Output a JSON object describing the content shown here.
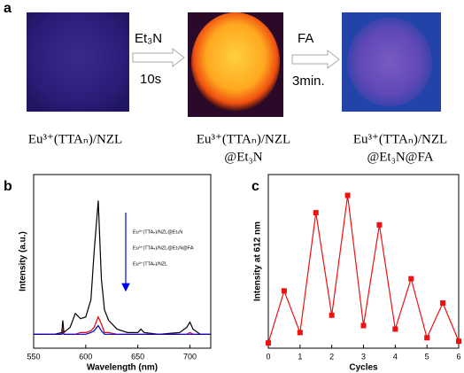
{
  "panel_a": {
    "label": "a",
    "arrows": [
      {
        "top": "Et₃N",
        "bottom": "10s"
      },
      {
        "top": "FA",
        "bottom": "3min."
      }
    ],
    "captions": [
      [
        "Eu³⁺(TTAₙ)/NZL"
      ],
      [
        "Eu³⁺(TTAₙ)/NZL",
        "@Et₃N"
      ],
      [
        "Eu³⁺(TTAₙ)/NZL",
        "@Et₃N@FA"
      ]
    ]
  },
  "chart_data": [
    {
      "type": "line",
      "label": "b",
      "xlabel": "Wavelength (nm)",
      "ylabel": "Intensity (a.u.)",
      "x": [
        550,
        570,
        577,
        578,
        579,
        585,
        590,
        595,
        600,
        605,
        608,
        612,
        615,
        618,
        622,
        630,
        640,
        650,
        653,
        656,
        670,
        690,
        697,
        700,
        703,
        710,
        720
      ],
      "xlim": [
        550,
        720
      ],
      "xticks": [
        550,
        600,
        650,
        700
      ],
      "ylim": [
        0,
        100
      ],
      "series": [
        {
          "name": "Eu³⁺(TTAₙ)/NZL@Et₃N",
          "color": "#000000",
          "values": [
            8,
            8,
            9,
            16,
            9,
            12,
            20,
            17,
            18,
            28,
            55,
            85,
            40,
            22,
            16,
            11,
            9,
            9,
            11,
            9,
            8,
            9,
            12,
            15,
            11,
            8,
            8
          ]
        },
        {
          "name": "Eu³⁺(TTAₙ)/NZL@Et₃N@FA",
          "color": "#e00000",
          "values": [
            8,
            8,
            8,
            10,
            8,
            8,
            8,
            9,
            9,
            10,
            12,
            18,
            14,
            9,
            9,
            8,
            8,
            8,
            8,
            8,
            8,
            8,
            8,
            9,
            8,
            8,
            8
          ]
        },
        {
          "name": "Eu³⁺(TTAₙ)/NZL",
          "color": "#0000cc",
          "values": [
            8,
            8,
            8,
            9,
            8,
            8,
            8,
            8,
            8,
            9,
            10,
            13,
            10,
            8,
            8,
            8,
            8,
            8,
            8,
            8,
            8,
            8,
            8,
            8,
            8,
            8,
            8
          ]
        }
      ]
    },
    {
      "type": "line",
      "label": "c",
      "xlabel": "Cycles",
      "ylabel": "Intensity at 612 nm",
      "markers": true,
      "x": [
        0,
        0.5,
        1,
        1.5,
        2,
        2.5,
        3,
        3.5,
        4,
        4.5,
        5,
        5.5,
        6
      ],
      "xlim": [
        0,
        6
      ],
      "xticks": [
        0,
        1,
        2,
        3,
        4,
        5,
        6
      ],
      "ylim": [
        0,
        100
      ],
      "series": [
        {
          "name": null,
          "color": "#ee1111",
          "values": [
            3,
            33,
            9,
            78,
            19,
            88,
            13,
            71,
            11,
            40,
            6,
            26,
            4
          ]
        }
      ]
    }
  ]
}
